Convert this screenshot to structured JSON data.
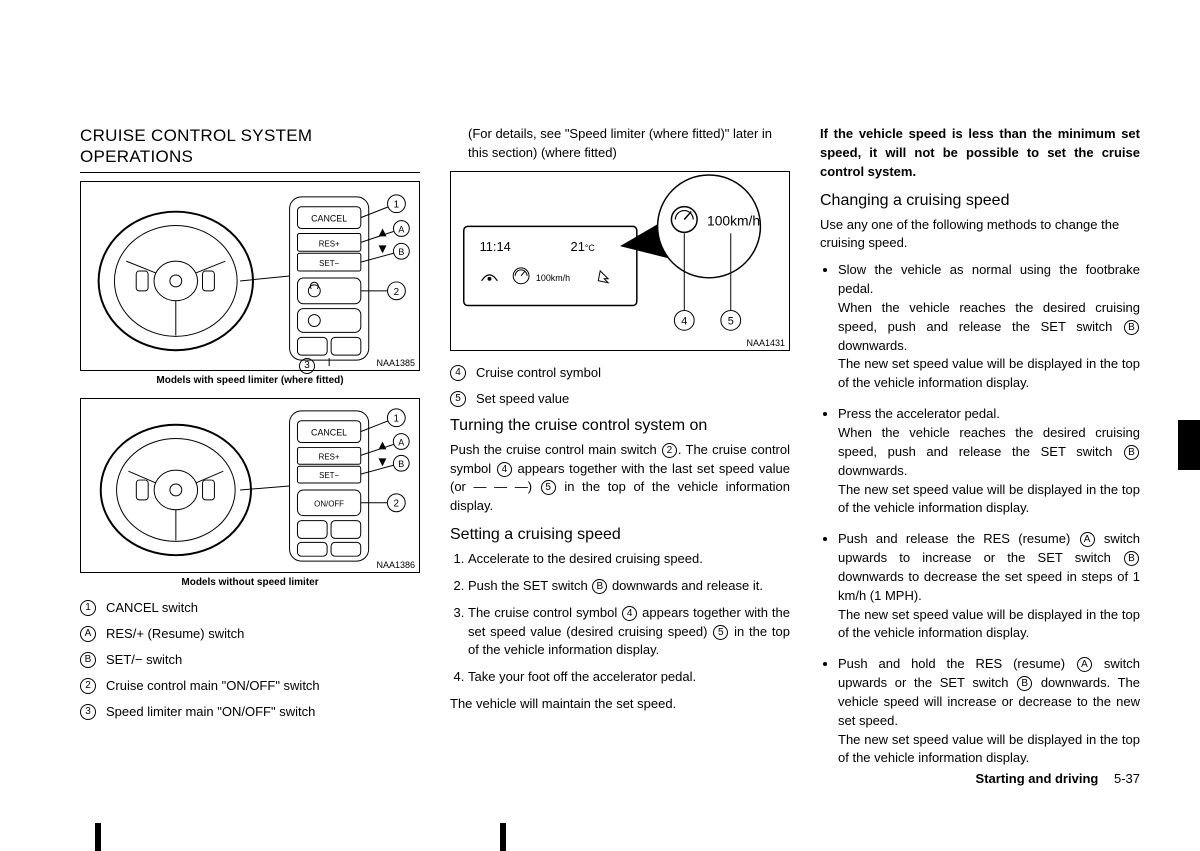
{
  "col1": {
    "heading": "CRUISE CONTROL SYSTEM OPERATIONS",
    "fig1": {
      "id": "NAA1385",
      "caption": "Models with speed limiter (where fitted)"
    },
    "fig2": {
      "id": "NAA1386",
      "caption": "Models without speed limiter"
    },
    "legend": [
      {
        "mark": "1",
        "text": "CANCEL switch"
      },
      {
        "mark": "A",
        "text": "RES/+ (Resume) switch"
      },
      {
        "mark": "B",
        "text": "SET/− switch"
      },
      {
        "mark": "2",
        "text": "Cruise control main \"ON/OFF\" switch"
      },
      {
        "mark": "3",
        "text": "Speed limiter main \"ON/OFF\" switch"
      }
    ]
  },
  "col2": {
    "intro": "(For details, see \"Speed limiter (where fitted)\" later in this section) (where fitted)",
    "fig3": {
      "id": "NAA1431",
      "time": "11:14",
      "temp": "21",
      "unit": "°C",
      "speed": "100km/h",
      "inset": "100km/h"
    },
    "legend": [
      {
        "mark": "4",
        "text": "Cruise control symbol"
      },
      {
        "mark": "5",
        "text": "Set speed value"
      }
    ],
    "turn_on_h": "Turning the cruise control system on",
    "turn_on_p": "Push the cruise control main switch {2}. The cruise control symbol {4} appears together with the last set speed value (or — — —) {5} in the top of the vehicle information display.",
    "set_h": "Setting a cruising speed",
    "steps": [
      "Accelerate to the desired cruising speed.",
      "Push the SET switch {B} downwards and release it.",
      "The cruise control symbol {4} appears together with the set speed value (desired cruising speed) {5} in the top of the vehicle information display.",
      "Take your foot off the accelerator pedal."
    ],
    "tail": "The vehicle will maintain the set speed."
  },
  "col3": {
    "warn": "If the vehicle speed is less than the minimum set speed, it will not be possible to set the cruise control system.",
    "change_h": "Changing a cruising speed",
    "change_intro": "Use any one of the following methods to change the cruising speed.",
    "bullets": [
      "Slow the vehicle as normal using the footbrake pedal.\nWhen the vehicle reaches the desired cruising speed, push and release the SET switch {B} downwards.\nThe new set speed value will be displayed in the top of the vehicle information display.",
      "Press the accelerator pedal.\nWhen the vehicle reaches the desired cruising speed, push and release the SET switch {B} downwards.\nThe new set speed value will be displayed in the top of the vehicle information display.",
      "Push and release the RES (resume) {A} switch upwards to increase or the SET switch {B} downwards to decrease the set speed in steps of 1 km/h (1 MPH).\nThe new set speed value will be displayed in the top of the vehicle information display.",
      "Push and hold the RES (resume) {A} switch upwards or the SET switch {B} downwards. The vehicle speed will increase or decrease to the new set speed.\nThe new set speed value will be displayed in the top of the vehicle information display."
    ]
  },
  "footer": {
    "section": "Starting and driving",
    "page": "5-37"
  },
  "fig_labels": {
    "cancel": "CANCEL",
    "res": "RES+",
    "set": "SET−",
    "onoff": "ON/OFF"
  }
}
